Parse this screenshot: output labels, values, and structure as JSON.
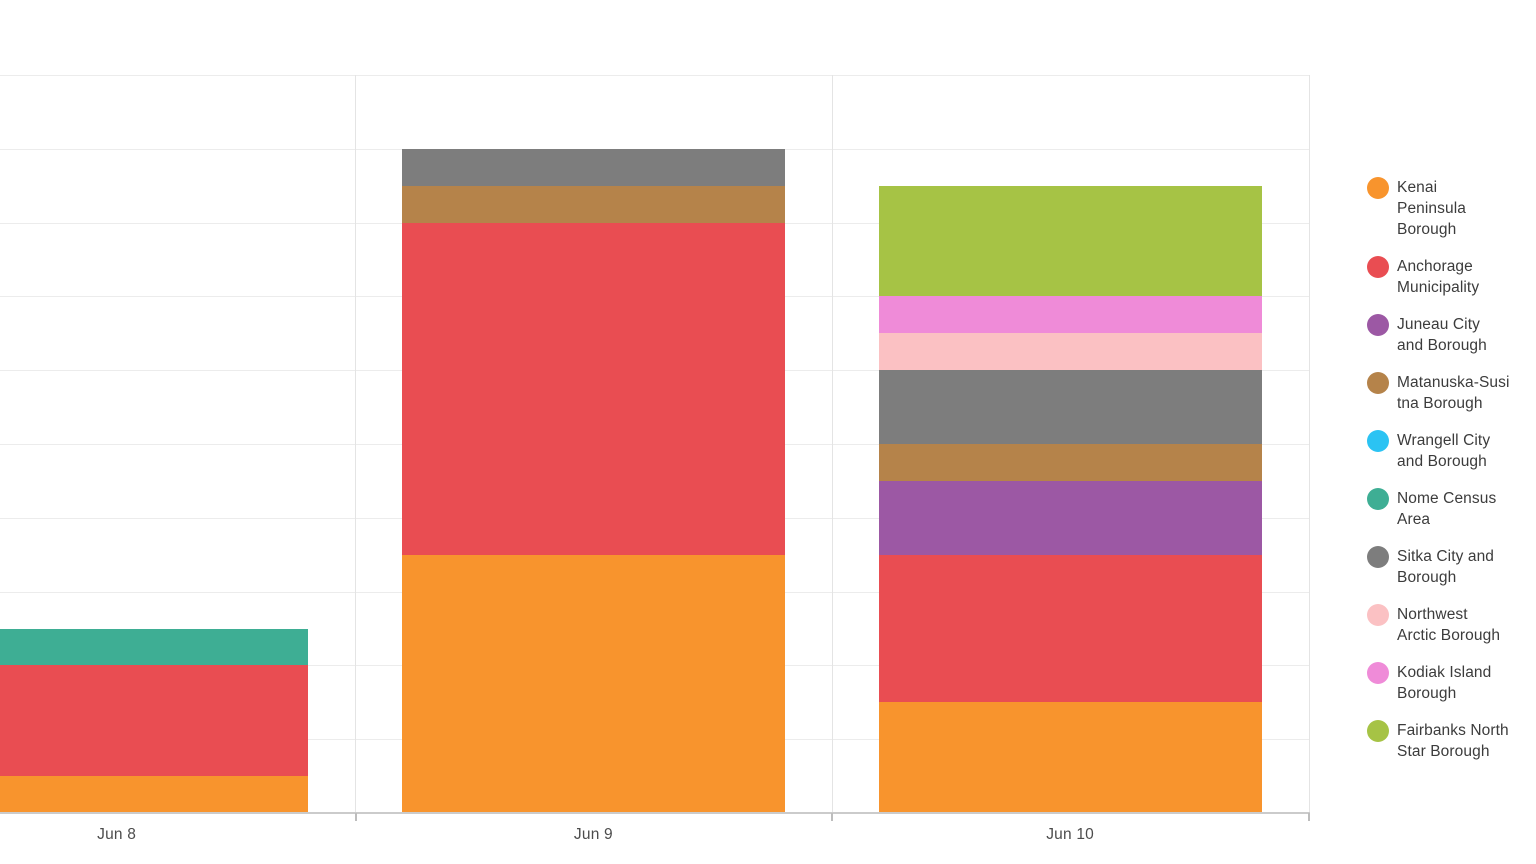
{
  "chart_data": {
    "type": "bar",
    "stacked": true,
    "title": "",
    "xlabel": "",
    "ylabel": "",
    "categories": [
      "Jun 8",
      "Jun 9",
      "Jun 10"
    ],
    "series": [
      {
        "name": "Kenai Peninsula Borough",
        "legend_lines": [
          "Kenai",
          "Peninsula",
          "Borough"
        ],
        "color": "#F8942D",
        "values": [
          1,
          7,
          3
        ]
      },
      {
        "name": "Anchorage Municipality",
        "legend_lines": [
          "Anchorage",
          "Municipality"
        ],
        "color": "#E94D52",
        "values": [
          3,
          9,
          4
        ]
      },
      {
        "name": "Juneau City and Borough",
        "legend_lines": [
          "Juneau City",
          "and Borough"
        ],
        "color": "#9C58A4",
        "values": [
          0,
          0,
          2
        ]
      },
      {
        "name": "Matanuska-Susitna Borough",
        "legend_lines": [
          "Matanuska-Susi",
          "tna Borough"
        ],
        "color": "#B5834A",
        "values": [
          0,
          1,
          1
        ]
      },
      {
        "name": "Wrangell City and Borough",
        "legend_lines": [
          "Wrangell City",
          "and Borough"
        ],
        "color": "#2BC3F3",
        "values": [
          0,
          0,
          0
        ]
      },
      {
        "name": "Nome Census Area",
        "legend_lines": [
          "Nome Census",
          "Area"
        ],
        "color": "#3EAE94",
        "values": [
          1,
          0,
          0
        ]
      },
      {
        "name": "Sitka City and Borough",
        "legend_lines": [
          "Sitka City and",
          "Borough"
        ],
        "color": "#7D7D7D",
        "values": [
          0,
          1,
          2
        ]
      },
      {
        "name": "Northwest Arctic Borough",
        "legend_lines": [
          "Northwest",
          "Arctic Borough"
        ],
        "color": "#FBC1C3",
        "values": [
          0,
          0,
          1
        ]
      },
      {
        "name": "Kodiak Island Borough",
        "legend_lines": [
          "Kodiak Island",
          "Borough"
        ],
        "color": "#EF8BD8",
        "values": [
          0,
          0,
          1
        ]
      },
      {
        "name": "Fairbanks North Star Borough",
        "legend_lines": [
          "Fairbanks North",
          "Star Borough"
        ],
        "color": "#A6C345",
        "values": [
          0,
          0,
          3
        ]
      }
    ],
    "totals_by_category": [
      5,
      18,
      17
    ],
    "ylim": [
      0,
      20
    ],
    "y_gridline_step": 2,
    "grid": true,
    "legend_position": "right",
    "y_axis_labels_visible": false,
    "note": "left edge of plot (y axis) cropped out of frame"
  }
}
